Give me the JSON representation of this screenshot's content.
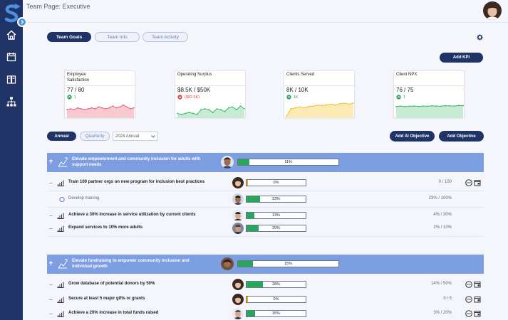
{
  "header": {
    "title": "Team Page: Executive"
  },
  "tabs": [
    {
      "label": "Team Goals",
      "active": true
    },
    {
      "label": "Team Info",
      "active": false
    },
    {
      "label": "Team Activity",
      "active": false
    }
  ],
  "buttons": {
    "add_kpi": "Add KPI",
    "annual": "Annual",
    "quarterly": "Quarterly",
    "add_ai_objective": "Add AI Objective",
    "add_objective": "Add Objective"
  },
  "period_select": {
    "value": "2024 Annual"
  },
  "kpis": [
    {
      "name": "Employee Satisfaction",
      "value": "77 / 80",
      "delta": "1",
      "trend": "up",
      "color": "#e9627c",
      "fill": "#f7c9d0"
    },
    {
      "name": "Operating Surplus",
      "value": "$8.5K / $50K",
      "delta": "($82.5K)",
      "trend": "down",
      "color": "#3bb56a",
      "fill": "#c7ebd3"
    },
    {
      "name": "Clients Served",
      "value": "8K / 10K",
      "delta": "1K",
      "trend": "up",
      "color": "#f0c43a",
      "fill": "#fbeab4"
    },
    {
      "name": "Client NPX",
      "value": "76 / 75",
      "delta": "1",
      "trend": "up",
      "color": "#3bb56a",
      "fill": "#c7ebd3"
    }
  ],
  "objectives": [
    {
      "title_line1": "Elevate empowerment and community inclusion for adults with",
      "title_line2": "support needs",
      "progress": 11,
      "progress_label": "11%",
      "key_results": [
        {
          "title": "Train 100 partner orgs on new program for inclusion best practices",
          "progress": 0,
          "progress_label": "0%",
          "value": "0 / 100",
          "bold": true,
          "fill": "#f0a818",
          "actions": true
        },
        {
          "title": "Develop training",
          "progress": 23,
          "progress_label": "23%",
          "value": "23% / 100%",
          "bold": false,
          "fill": "#27a65c",
          "actions": false,
          "task": true
        },
        {
          "title": "Achieve a 30% increase in service utilization by current clients",
          "progress": 13,
          "progress_label": "13%",
          "value": "4% / 30%",
          "bold": true,
          "fill": "#27a65c",
          "actions": false
        },
        {
          "title": "Expand services to 10% more adults",
          "progress": 20,
          "progress_label": "20%",
          "value": "2% / 10%",
          "bold": true,
          "fill": "#27a65c",
          "actions": false
        }
      ]
    },
    {
      "title_line1": "Elevate fundraising to empower community inclusion and",
      "title_line2": "individual growth",
      "progress": 15,
      "progress_label": "15%",
      "key_results": [
        {
          "title": "Grow database of potential donors by 50%",
          "progress": 28,
          "progress_label": "28%",
          "value": "14% / 50%",
          "bold": true,
          "fill": "#27a65c",
          "actions": true
        },
        {
          "title": "Secure at least 5 major gifts or grants",
          "progress": 0,
          "progress_label": "0%",
          "value": "0 / 5",
          "bold": true,
          "fill": "#f0a818",
          "actions": true
        },
        {
          "title": "Achieve a 20% increase in total funds raised",
          "progress": 15,
          "progress_label": "15%",
          "value": "3% / 20%",
          "bold": true,
          "fill": "#27a65c",
          "actions": true
        }
      ]
    }
  ]
}
